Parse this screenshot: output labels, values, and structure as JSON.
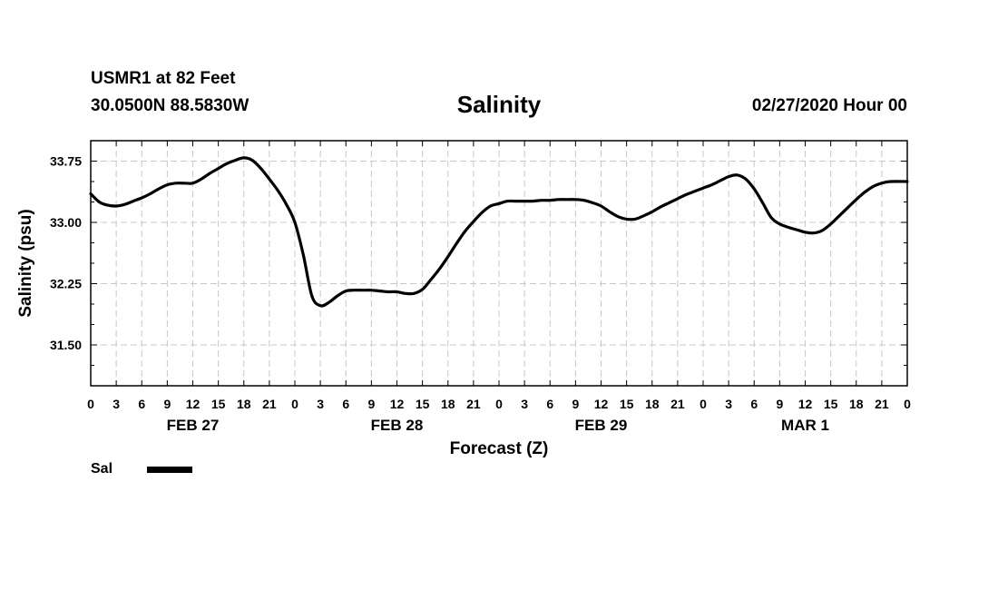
{
  "header": {
    "station": "USMR1 at 82 Feet",
    "coords": "30.0500N 88.5830W",
    "title": "Salinity",
    "datetime": "02/27/2020 Hour 00"
  },
  "chart_data": {
    "type": "line",
    "title": "Salinity",
    "xlabel": "Forecast (Z)",
    "ylabel": "Salinity (psu)",
    "x_unit": "forecast hour",
    "xlim": [
      0,
      96
    ],
    "ylim": [
      31.0,
      34.0
    ],
    "y_ticks": [
      31.5,
      32.25,
      33.0,
      33.75
    ],
    "y_tick_labels": [
      "31.50",
      "32.25",
      "33.00",
      "33.75"
    ],
    "x_ticks": [
      0,
      3,
      6,
      9,
      12,
      15,
      18,
      21,
      24,
      27,
      30,
      33,
      36,
      39,
      42,
      45,
      48,
      51,
      54,
      57,
      60,
      63,
      66,
      69,
      72,
      75,
      78,
      81,
      84,
      87,
      90,
      93,
      96
    ],
    "x_tick_labels": [
      "0",
      "3",
      "6",
      "9",
      "12",
      "15",
      "18",
      "21",
      "0",
      "3",
      "6",
      "9",
      "12",
      "15",
      "18",
      "21",
      "0",
      "3",
      "6",
      "9",
      "12",
      "15",
      "18",
      "21",
      "0",
      "3",
      "6",
      "9",
      "12",
      "15",
      "18",
      "21",
      "0"
    ],
    "date_labels": [
      {
        "x": 12,
        "label": "FEB 27"
      },
      {
        "x": 36,
        "label": "FEB 28"
      },
      {
        "x": 60,
        "label": "FEB 29"
      },
      {
        "x": 84,
        "label": "MAR 1"
      }
    ],
    "grid": true,
    "legend": "bottom-left",
    "series": [
      {
        "name": "Sal",
        "color": "#000000",
        "x": [
          0,
          1,
          2,
          3,
          4,
          5,
          6,
          7,
          8,
          9,
          10,
          11,
          12,
          13,
          14,
          15,
          16,
          17,
          18,
          19,
          20,
          21,
          22,
          23,
          24,
          25,
          26,
          27,
          28,
          29,
          30,
          31,
          32,
          33,
          34,
          35,
          36,
          37,
          38,
          39,
          40,
          41,
          42,
          43,
          44,
          45,
          46,
          47,
          48,
          49,
          50,
          51,
          52,
          53,
          54,
          55,
          56,
          57,
          58,
          59,
          60,
          61,
          62,
          63,
          64,
          65,
          66,
          67,
          68,
          69,
          70,
          71,
          72,
          73,
          74,
          75,
          76,
          77,
          78,
          79,
          80,
          81,
          82,
          83,
          84,
          85,
          86,
          87,
          88,
          89,
          90,
          91,
          92,
          93,
          94,
          96
        ],
        "values": [
          33.35,
          33.25,
          33.21,
          33.2,
          33.22,
          33.26,
          33.3,
          33.35,
          33.41,
          33.46,
          33.48,
          33.48,
          33.48,
          33.53,
          33.6,
          33.66,
          33.72,
          33.76,
          33.79,
          33.76,
          33.66,
          33.53,
          33.39,
          33.22,
          33.0,
          32.6,
          32.1,
          31.98,
          32.02,
          32.1,
          32.16,
          32.17,
          32.17,
          32.17,
          32.16,
          32.15,
          32.15,
          32.13,
          32.13,
          32.18,
          32.3,
          32.43,
          32.58,
          32.74,
          32.89,
          33.01,
          33.12,
          33.2,
          33.23,
          33.26,
          33.26,
          33.26,
          33.26,
          33.27,
          33.27,
          33.28,
          33.28,
          33.28,
          33.27,
          33.24,
          33.2,
          33.13,
          33.07,
          33.04,
          33.04,
          33.08,
          33.13,
          33.19,
          33.24,
          33.29,
          33.34,
          33.38,
          33.42,
          33.46,
          33.51,
          33.56,
          33.58,
          33.53,
          33.41,
          33.24,
          33.06,
          32.98,
          32.94,
          32.91,
          32.88,
          32.87,
          32.9,
          32.98,
          33.08,
          33.18,
          33.28,
          33.37,
          33.44,
          33.48,
          33.5,
          33.5
        ]
      }
    ]
  }
}
